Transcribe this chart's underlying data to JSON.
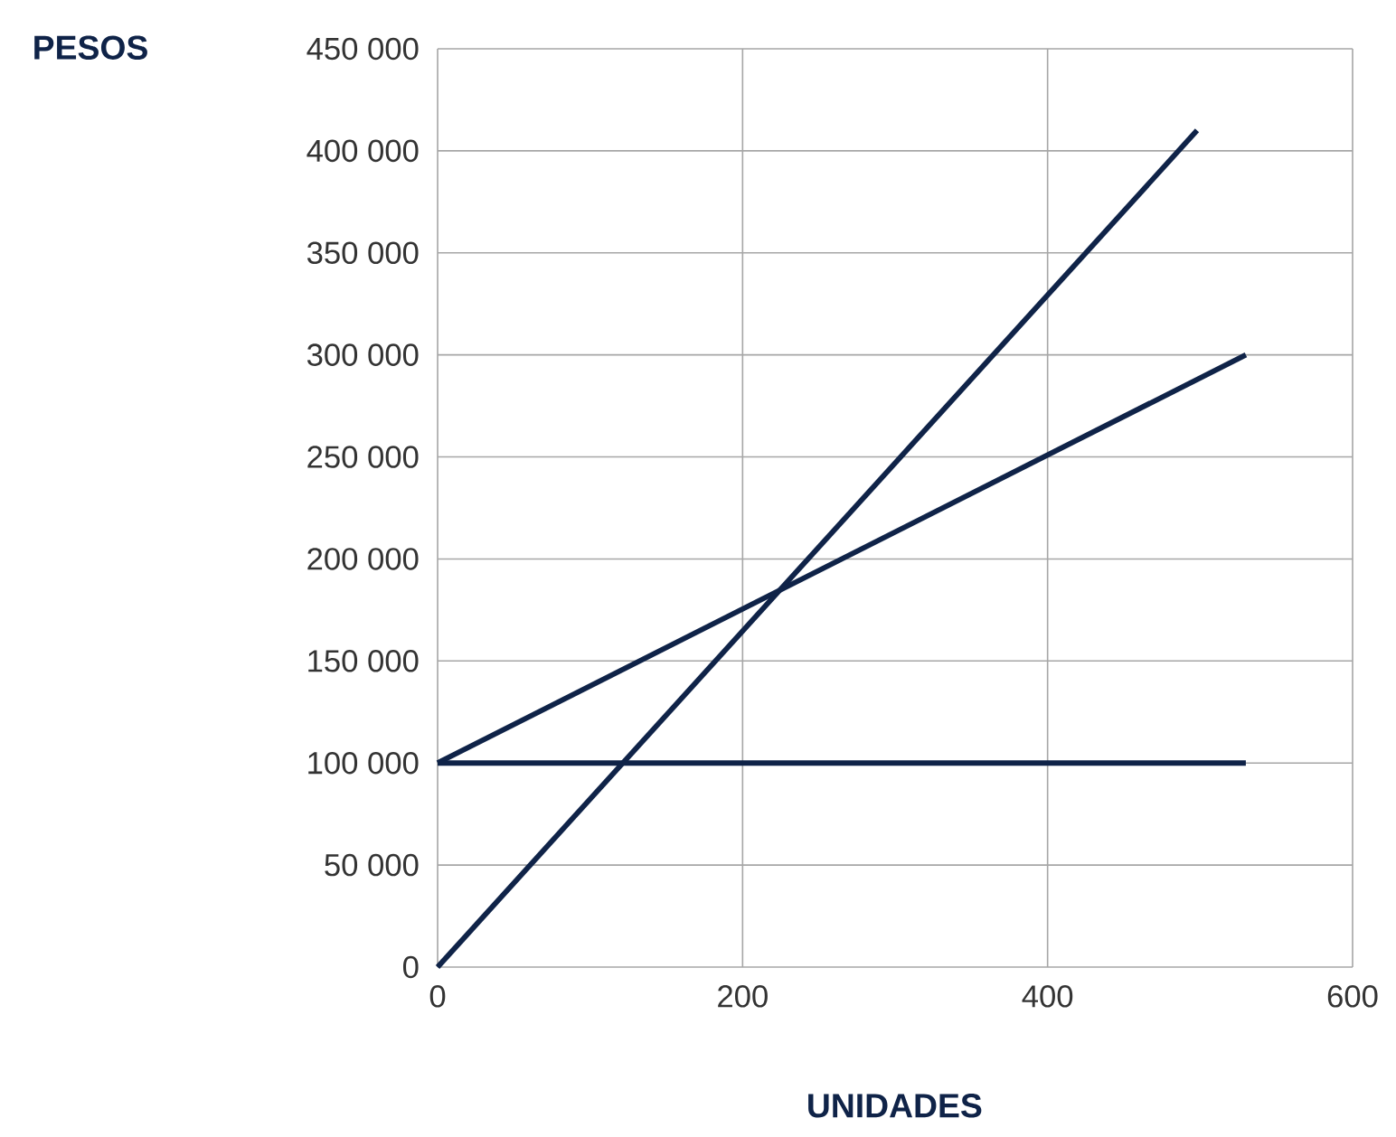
{
  "chart_data": {
    "type": "line",
    "xlabel": "UNIDADES",
    "ylabel": "PESOS",
    "xlim": [
      0,
      600
    ],
    "xticks": [
      0,
      200,
      400,
      600
    ],
    "ylim": [
      0,
      450000
    ],
    "yticks": [
      {
        "value": 0,
        "label": "0"
      },
      {
        "value": 50000,
        "label": "50 000"
      },
      {
        "value": 100000,
        "label": "100 000"
      },
      {
        "value": 150000,
        "label": "150 000"
      },
      {
        "value": 200000,
        "label": "200 000"
      },
      {
        "value": 250000,
        "label": "250 000"
      },
      {
        "value": 300000,
        "label": "300 000"
      },
      {
        "value": 350000,
        "label": "350 000"
      },
      {
        "value": 400000,
        "label": "400 000"
      },
      {
        "value": 450000,
        "label": "450 000"
      }
    ],
    "grid": true,
    "marker": "none",
    "line_style": "solid",
    "series": [
      {
        "color": "#0f2348",
        "x": [
          0,
          498
        ],
        "values": [
          0,
          410000
        ]
      },
      {
        "color": "#0f2348",
        "x": [
          0,
          530
        ],
        "values": [
          100000,
          300000
        ]
      },
      {
        "color": "#0f2348",
        "x": [
          0,
          530
        ],
        "values": [
          100000,
          100000
        ]
      }
    ]
  }
}
